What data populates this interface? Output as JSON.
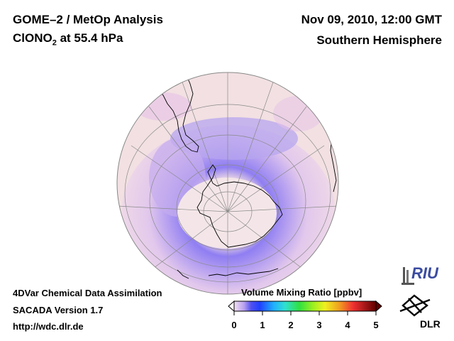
{
  "header": {
    "title_line1": "GOME–2 / MetOp Analysis",
    "species_prefix": "ClONO",
    "species_subscript": "2",
    "species_suffix": " at 55.4 hPa",
    "datetime": "Nov 09, 2010, 12:00 GMT",
    "region": "Southern Hemisphere"
  },
  "footer": {
    "line1": "4DVar Chemical Data Assimilation",
    "line2": "SACADA Version 1.7",
    "line3": "http://wdc.dlr.de"
  },
  "colorbar": {
    "title": "Volume Mixing Ratio [ppbv]",
    "ticks": [
      "0",
      "1",
      "2",
      "3",
      "4",
      "5"
    ],
    "min": 0,
    "max": 5
  },
  "logos": {
    "riu": "RIU",
    "dlr": "DLR"
  },
  "colors": {
    "globe_background": "#f2e0e2",
    "low": "#8e7cf0",
    "mid": "#d8b8ee",
    "coastline": "#000000",
    "gridline": "#8a8a8a"
  }
}
